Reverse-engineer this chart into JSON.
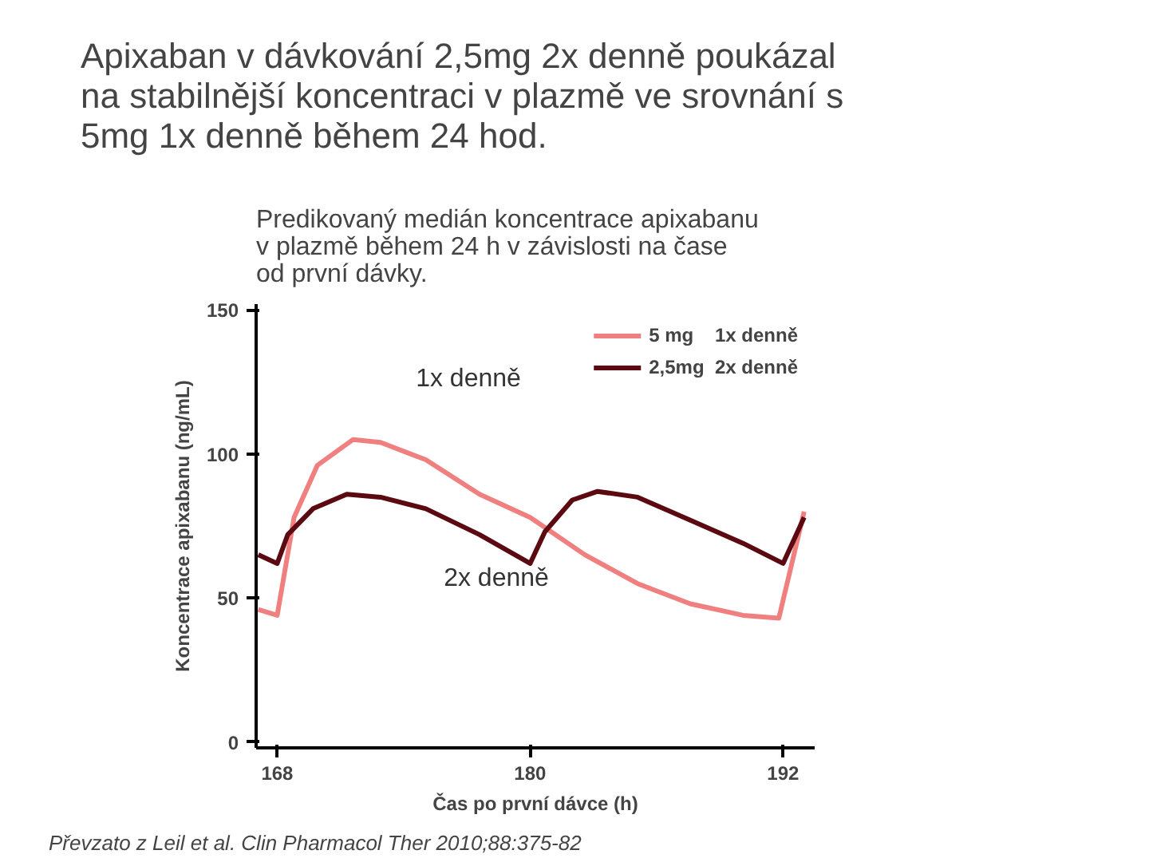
{
  "chart_data": {
    "type": "line",
    "title": "Apixaban v dávkování 2,5mg 2x denně poukázal\nna stabilnější koncentraci v plazmě ve srovnání s\n5mg 1x denně během 24 hod.",
    "subtitle": "Predikovaný medián koncentrace apixabanu\nv plazmě během 24 h v závislosti na čase\nod první dávky.",
    "xlabel": "Čas po první dávce (h)",
    "ylabel": "Koncentrace apixabanu (ng/mL)",
    "series": [
      {
        "name": "5 mg    1x denně",
        "color": "#f08080",
        "x": [
          167.1,
          168,
          168.8,
          169.9,
          171.6,
          172.9,
          175.05,
          177.6,
          180,
          182.6,
          185.1,
          187.6,
          190.1,
          191.8,
          193
        ],
        "values": [
          46,
          44,
          78,
          96,
          105,
          104,
          98,
          86,
          78,
          65,
          55,
          48,
          44,
          43,
          80
        ]
      },
      {
        "name": "2,5mg  2x denně",
        "color": "#5a0a10",
        "x": [
          167.1,
          168,
          168.5,
          169.7,
          171.3,
          172.9,
          175.05,
          177.6,
          180,
          180.7,
          182,
          183.2,
          185.1,
          187.6,
          190.1,
          192,
          193
        ],
        "values": [
          65,
          62,
          72,
          81,
          86,
          85,
          81,
          72,
          62,
          73,
          84,
          87,
          85,
          77,
          69,
          62,
          78
        ]
      }
    ],
    "xlim": [
      167,
      193.5
    ],
    "ylim": [
      -2,
      152
    ],
    "xticks": [
      168,
      180,
      192
    ],
    "yticks": [
      0,
      50,
      100,
      150
    ],
    "grid": false,
    "legend": "top right",
    "line_style": "solid",
    "marker": "none",
    "annotations": [
      "1x denně",
      "2x denně",
      "Převzato z Leil et al. Clin Pharmacol Ther 2010;88:375-82"
    ]
  }
}
